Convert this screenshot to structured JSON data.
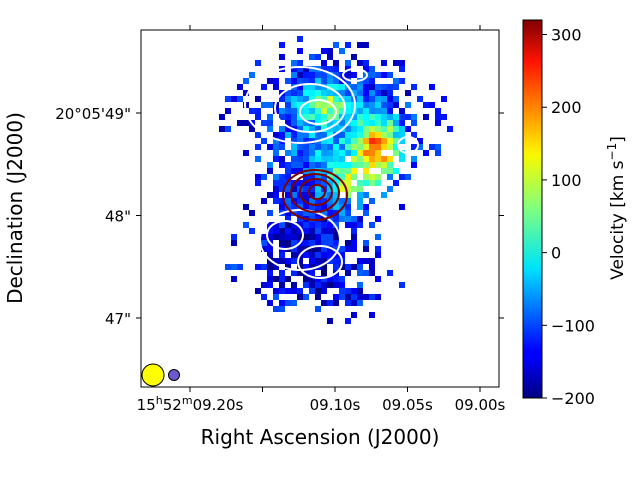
{
  "chart_data": {
    "type": "heatmap",
    "title": "",
    "xlabel": "Right Ascension (J2000)",
    "ylabel": "Declination (J2000)",
    "x_ticks": [
      {
        "value": 9.2,
        "label": "15h52m09.20s",
        "prefix": "15",
        "h": "h",
        "mid": "52",
        "m": "m",
        "rest": "09.20s"
      },
      {
        "value": 9.1,
        "label": "09.10s"
      },
      {
        "value": 9.05,
        "label": "09.05s"
      },
      {
        "value": 9.0,
        "label": "09.00s"
      }
    ],
    "x_tick_positions_unlabeled": [
      9.15
    ],
    "y_ticks": [
      {
        "value": 49,
        "label": "20°05'49\""
      },
      {
        "value": 48,
        "label": "48\""
      },
      {
        "value": 47,
        "label": "47\""
      }
    ],
    "colorbar": {
      "label": "Velocity [km s−1]",
      "label_main": "Velocity [km s",
      "label_sup": "−1",
      "label_end": "]",
      "range": [
        -200,
        320
      ],
      "ticks": [
        300,
        200,
        100,
        0,
        -100,
        -200
      ],
      "tick_labels": [
        "300",
        "200",
        "100",
        "0",
        "−100",
        "−200"
      ],
      "colormap": "jet"
    },
    "contours": [
      {
        "color": "#ffffff",
        "description": "white contours"
      },
      {
        "color": "#800000",
        "description": "dark red contours"
      }
    ],
    "beams": [
      {
        "fill": "#ffff00",
        "size": "large"
      },
      {
        "fill": "#6a5acd",
        "size": "small"
      }
    ],
    "grid": false
  }
}
